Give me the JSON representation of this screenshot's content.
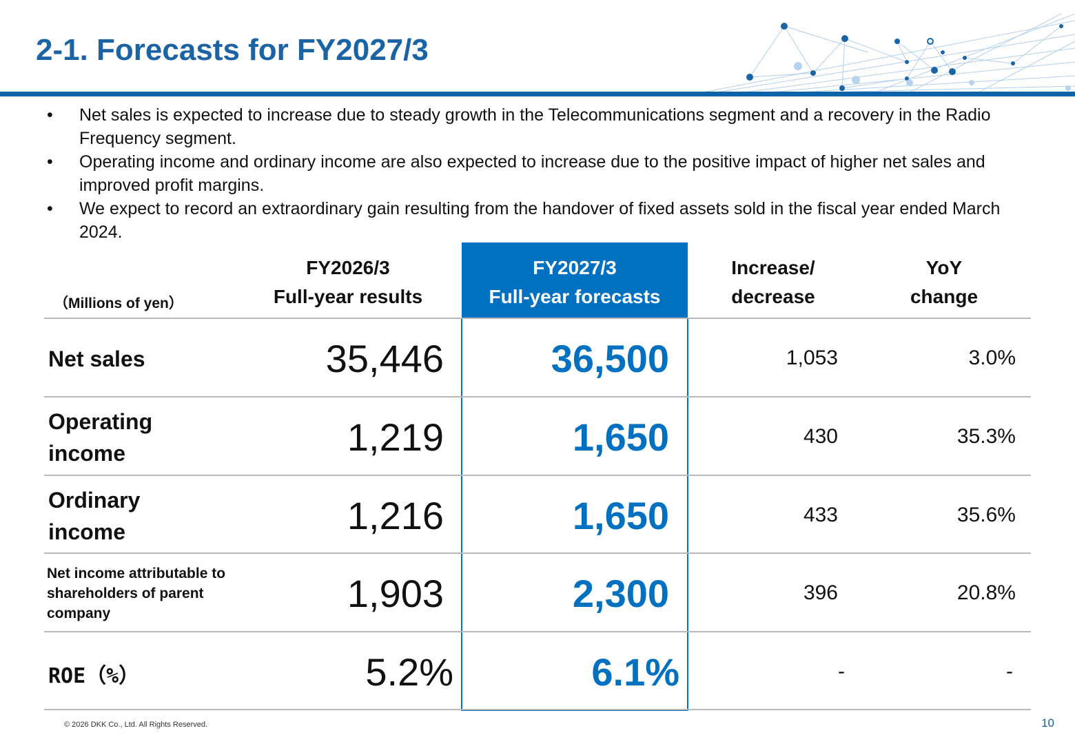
{
  "header": {
    "title": "2-1. Forecasts for FY2027/3"
  },
  "bullets": [
    {
      "marker": "•",
      "text": "Net sales is expected to increase due to steady growth in the Telecommunications segment and a recovery in the Radio Frequency segment."
    },
    {
      "marker": "•",
      "text": "Operating income and ordinary income are also expected to increase due to the positive impact of higher net sales and improved profit margins."
    },
    {
      "marker": "•",
      "text": "We expect to record an extraordinary gain resulting from the handover of fixed assets sold in the fiscal year ended March 2024."
    }
  ],
  "table": {
    "units": "（Millions of yen）",
    "columns": {
      "fy2026": {
        "line1": "FY2026/3",
        "line2": "Full-year results"
      },
      "fy2027": {
        "line1": "FY2027/3",
        "line2": "Full-year forecasts"
      },
      "inc": {
        "line1": "Increase/",
        "line2": "decrease"
      },
      "yoy": {
        "line1": "YoY",
        "line2": "change"
      }
    },
    "rows": [
      {
        "label": "Net sales",
        "fy2026": "35,446",
        "fy2027": "36,500",
        "inc": "1,053",
        "yoy": "3.0%"
      },
      {
        "label": "Operating income",
        "fy2026": "1,219",
        "fy2027": "1,650",
        "inc": "430",
        "yoy": "35.3%"
      },
      {
        "label": "Ordinary income",
        "fy2026": "1,216",
        "fy2027": "1,650",
        "inc": "433",
        "yoy": "35.6%"
      },
      {
        "label": "Net income attributable to shareholders of parent company",
        "fy2026": "1,903",
        "fy2027": "2,300",
        "inc": "396",
        "yoy": "20.8%"
      },
      {
        "label": "ROE（%）",
        "fy2026": "5.2%",
        "fy2027": "6.1%",
        "inc": "-",
        "yoy": "-"
      }
    ]
  },
  "footer": {
    "copyright": "© 2026 DKK Co., Ltd. All Rights Reserved.",
    "page": "10"
  },
  "colors": {
    "accent": "#0070c0",
    "title": "#1a63a4",
    "rule": "#0d62a8"
  },
  "decor": {
    "network_icon": "network-graphic-icon"
  }
}
